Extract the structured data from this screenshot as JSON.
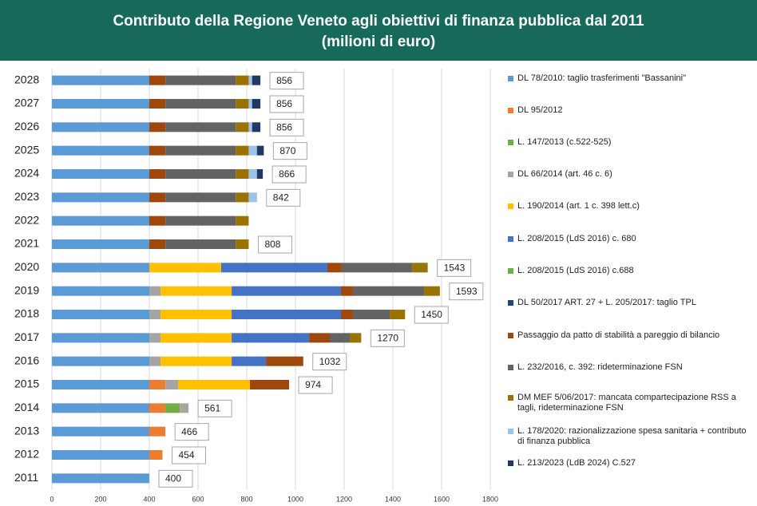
{
  "chart_data": {
    "type": "stacked-barh",
    "title": "Contributo della Regione Veneto agli obiettivi di finanza pubblica dal 2011",
    "subtitle": "(milioni di euro)",
    "categories": [
      "2011",
      "2012",
      "2013",
      "2014",
      "2015",
      "2016",
      "2017",
      "2018",
      "2019",
      "2020",
      "2021",
      "2022",
      "2023",
      "2024",
      "2025",
      "2026",
      "2027",
      "2028"
    ],
    "xlim": [
      0,
      1800
    ],
    "xticks": [
      0,
      200,
      400,
      600,
      800,
      1000,
      1200,
      1400,
      1600,
      1800
    ],
    "grid": true,
    "legend": "right",
    "data_labels": [
      400,
      454,
      466,
      561,
      974,
      1032,
      1270,
      1450,
      1593,
      1543,
      808,
      null,
      842,
      866,
      870,
      856,
      856,
      856
    ],
    "series": [
      {
        "name": "DL 78/2010: taglio trasferimenti \"Bassanini\"",
        "color": "#5b9bd5",
        "values": [
          400,
          400,
          400,
          400,
          400,
          400,
          400,
          400,
          400,
          400,
          400,
          400,
          400,
          400,
          400,
          400,
          400,
          400
        ]
      },
      {
        "name": "DL 95/2012",
        "color": "#ed7d31",
        "values": [
          null,
          54,
          66,
          66,
          66,
          null,
          null,
          null,
          null,
          null,
          null,
          null,
          null,
          null,
          null,
          null,
          null,
          null
        ]
      },
      {
        "name": "L. 147/2013 (c.522-525)",
        "color": "#70ad47",
        "values": [
          null,
          null,
          null,
          59,
          null,
          null,
          null,
          null,
          null,
          null,
          null,
          null,
          null,
          null,
          null,
          null,
          null,
          null
        ]
      },
      {
        "name": "DL 66/2014 (art. 46 c. 6)",
        "color": "#a5a5a5",
        "values": [
          null,
          null,
          null,
          36,
          52,
          46,
          46,
          46,
          46,
          null,
          null,
          null,
          null,
          null,
          null,
          null,
          null,
          null
        ]
      },
      {
        "name": "L. 190/2014 (art. 1 c. 398 lett.c)",
        "color": "#ffc000",
        "values": [
          null,
          null,
          null,
          null,
          295,
          292,
          292,
          292,
          292,
          295,
          null,
          null,
          null,
          null,
          null,
          null,
          null,
          null
        ]
      },
      {
        "name": "L. 208/2015 (LdS 2016) c. 680",
        "color": "#4472c4",
        "values": [
          null,
          null,
          null,
          null,
          null,
          141,
          318,
          449,
          449,
          436,
          null,
          null,
          null,
          null,
          null,
          null,
          null,
          null
        ]
      },
      {
        "name": "L. 208/2015 (LdS 2016) c.688",
        "color": "#70ad47",
        "values": [
          null,
          null,
          null,
          null,
          null,
          null,
          null,
          null,
          null,
          null,
          null,
          null,
          null,
          null,
          null,
          null,
          null,
          null
        ]
      },
      {
        "name": "DL 50/2017 ART. 27 + L. 205/2017: taglio TPL",
        "color": "#264478",
        "values": [
          null,
          null,
          null,
          null,
          null,
          null,
          null,
          null,
          null,
          null,
          null,
          null,
          null,
          null,
          null,
          null,
          null,
          null
        ]
      },
      {
        "name": "Passaggio da patto di stabilità a pareggio di bilancio",
        "color": "#9e480e",
        "values": [
          null,
          null,
          null,
          null,
          161,
          153,
          85,
          49,
          49,
          59,
          66,
          66,
          66,
          66,
          66,
          66,
          66,
          66
        ]
      },
      {
        "name": "L. 232/2016, c. 392: rideterminazione FSN",
        "color": "#636363",
        "values": [
          null,
          null,
          null,
          null,
          null,
          null,
          82,
          151,
          292,
          289,
          289,
          289,
          289,
          289,
          289,
          289,
          289,
          289
        ]
      },
      {
        "name": "DM MEF 5/06/2017: mancata compartecipazione RSS a tagli, rideterminazione FSN",
        "color": "#997300",
        "values": [
          null,
          null,
          null,
          null,
          null,
          null,
          47,
          63,
          65,
          64,
          53,
          53,
          53,
          53,
          53,
          53,
          53,
          53
        ]
      },
      {
        "name": "L. 178/2020: razionalizzazione spesa sanitaria + contributo di finanza pubblica",
        "color": "#9dc3e6",
        "values": [
          null,
          null,
          null,
          null,
          null,
          null,
          null,
          null,
          null,
          null,
          null,
          null,
          34,
          34,
          34,
          14,
          14,
          14
        ]
      },
      {
        "name": "L. 213/2023 (LdB 2024) C.527",
        "color": "#203864",
        "values": [
          null,
          null,
          null,
          null,
          null,
          null,
          null,
          null,
          null,
          null,
          null,
          null,
          null,
          24,
          28,
          34,
          34,
          34
        ]
      }
    ]
  }
}
